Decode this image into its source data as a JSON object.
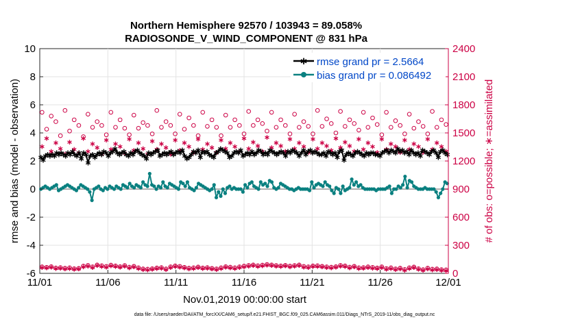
{
  "chart_data": {
    "type": "line",
    "title_line1": "Northern Hemisphere 92570 / 103943 = 89.058%",
    "title_line2": "RADIOSONDE_V_WIND_COMPONENT @ 831 hPa",
    "xlabel": "Nov.01,2019 00:00:00 start",
    "ylabel_left": "rmse and bias (model - observation)",
    "ylabel_right": "# of obs: o=possible; ∗=assimilated",
    "footnote": "data file: /Users/raeder/DAI/ATM_forcXX/CAM6_setup/f.e21.FHIST_BGC.f09_025.CAM6assim.011/Diags_NTrS_2019-11/obs_diag_output.nc",
    "xlim": [
      0,
      30
    ],
    "ylim_left": [
      -6,
      10
    ],
    "ylim_right": [
      0,
      2400
    ],
    "x_ticks": [
      0,
      5,
      10,
      15,
      20,
      25,
      30
    ],
    "x_tick_labels": [
      "11/01",
      "11/06",
      "11/11",
      "11/16",
      "11/21",
      "11/26",
      "12/01"
    ],
    "y_left_ticks": [
      -6,
      -4,
      -2,
      0,
      2,
      4,
      6,
      8,
      10
    ],
    "y_left_tick_labels": [
      "-6",
      "-4",
      "-2",
      "0",
      "2",
      "4",
      "6",
      "8",
      "10"
    ],
    "y_right_ticks": [
      0,
      300,
      600,
      900,
      1200,
      1500,
      1800,
      2100,
      2400
    ],
    "y_right_tick_labels": [
      "0",
      "300",
      "600",
      "900",
      "1200",
      "1500",
      "1800",
      "2100",
      "2400"
    ],
    "legend": [
      {
        "label": "rmse grand pr = 2.5664",
        "color": "#000000"
      },
      {
        "label": "bias grand pr = 0.086492",
        "color": "#0a8080"
      }
    ],
    "colors": {
      "rmse": "#000000",
      "bias": "#0a8080",
      "obs": "#cc0044",
      "zero_line": "#b0b0b0",
      "label_text": "#0047c8"
    },
    "series": [
      {
        "name": "rmse",
        "values": [
          2.3,
          2.1,
          2.4,
          2.5,
          2.4,
          2.5,
          2.4,
          2.6,
          2.5,
          2.6,
          2.5,
          2.4,
          2.6,
          2.5,
          2.7,
          2.5,
          2.4,
          2.6,
          2.2,
          2.6,
          2.5,
          1.9,
          2.4,
          2.5,
          2.3,
          2.5,
          2.6,
          2.5,
          2.7,
          2.6,
          2.4,
          2.6,
          2.7,
          2.9,
          2.6,
          2.5,
          2.6,
          2.7,
          2.5,
          2.4,
          2.6,
          2.5,
          2.7,
          2.8,
          2.6,
          2.5,
          2.4,
          2.2,
          2.6,
          2.5,
          2.6,
          2.7,
          2.8,
          2.4,
          2.5,
          2.6,
          2.5,
          2.6,
          2.7,
          2.5,
          2.6,
          2.7,
          2.6,
          2.8,
          2.4,
          2.2,
          2.3,
          2.5,
          2.7,
          2.6,
          2.8,
          2.3,
          2.7,
          2.6,
          2.7,
          2.5,
          2.4,
          2.3,
          2.6,
          2.7,
          2.9,
          2.8,
          2.7,
          2.6,
          2.3,
          2.4,
          2.6,
          2.7,
          2.6,
          2.8,
          2.4,
          2.5,
          2.6,
          2.5,
          2.7,
          2.5,
          2.6,
          2.8,
          2.7,
          2.5,
          2.6,
          2.5,
          2.8,
          2.7,
          2.6,
          2.5,
          2.6,
          2.7,
          2.6,
          2.4,
          2.7,
          2.6,
          2.8,
          2.7,
          2.6,
          2.4,
          2.6,
          2.8,
          2.5,
          2.7,
          2.8,
          2.6,
          2.7,
          2.6,
          2.5,
          2.5,
          2.6,
          2.4,
          2.7,
          2.6,
          2.5,
          2.6,
          2.3,
          2.7,
          2.8,
          2.1,
          2.5,
          2.6,
          2.5,
          2.4,
          2.6,
          2.7,
          2.6,
          2.5,
          2.4,
          2.6,
          2.5,
          2.6,
          2.6,
          2.5,
          2.5,
          2.4,
          2.6,
          2.7,
          2.8,
          2.6,
          2.8,
          2.7,
          2.6,
          2.9,
          2.7,
          2.8,
          2.6,
          2.7,
          2.5,
          2.8,
          2.6,
          2.5,
          2.6,
          2.4,
          2.8,
          2.7,
          2.6,
          2.5,
          2.7,
          2.8,
          2.6,
          2.3,
          2.7,
          2.8,
          2.6,
          2.5
        ]
      },
      {
        "name": "bias",
        "values": [
          0.0,
          0.1,
          0.2,
          0.1,
          0.0,
          0.1,
          0.2,
          0.3,
          -0.1,
          0.0,
          0.1,
          0.2,
          0.3,
          0.2,
          0.1,
          0.0,
          -0.1,
          0.1,
          0.3,
          0.2,
          0.1,
          0.0,
          -0.2,
          -0.8,
          0.0,
          0.1,
          0.2,
          0.0,
          -0.1,
          0.1,
          0.0,
          0.2,
          0.1,
          0.0,
          0.2,
          0.1,
          0.0,
          0.3,
          0.2,
          0.1,
          0.4,
          0.2,
          0.1,
          0.3,
          0.2,
          0.1,
          0.5,
          0.3,
          0.2,
          1.1,
          0.3,
          0.2,
          0.0,
          0.2,
          0.1,
          0.5,
          0.2,
          0.1,
          0.4,
          0.3,
          0.2,
          0.1,
          0.0,
          0.5,
          0.4,
          0.2,
          0.5,
          0.1,
          0.0,
          -0.1,
          0.1,
          0.4,
          0.3,
          0.2,
          0.1,
          0.0,
          -0.1,
          0.0,
          0.3,
          -0.6,
          -0.2,
          -0.5,
          0.0,
          -0.3,
          0.1,
          0.2,
          0.0,
          0.1,
          0.0,
          0.0,
          0.0,
          -0.2,
          0.3,
          0.1,
          0.4,
          0.5,
          0.2,
          0.1,
          0.0,
          0.5,
          0.3,
          0.4,
          0.2,
          0.6,
          0.5,
          0.1,
          0.0,
          0.1,
          0.4,
          0.3,
          0.2,
          0.1,
          0.0,
          0.0,
          -0.1,
          0.0,
          0.1,
          0.0,
          0.0,
          0.0,
          0.0,
          -0.1,
          0.5,
          0.1,
          0.3,
          0.4,
          0.3,
          0.2,
          0.5,
          0.3,
          0.2,
          -0.1,
          -0.3,
          0.1,
          0.0,
          -0.3,
          0.2,
          -0.1,
          0.0,
          0.1,
          0.7,
          0.3,
          0.5,
          0.2,
          0.3,
          0.1,
          0.0,
          0.0,
          0.0,
          0.0,
          0.0,
          -0.1,
          0.0,
          0.0,
          0.0,
          0.0,
          0.1,
          0.2,
          -0.3,
          0.0,
          0.0,
          0.2,
          0.1,
          0.3,
          0.9,
          0.1,
          0.6,
          0.5,
          0.2,
          0.1,
          0.0,
          0.0,
          0.0,
          0.1,
          0.0,
          0.0,
          0.0,
          0.0,
          -0.2,
          -0.6,
          -0.3,
          0.0,
          0.5,
          0.4
        ]
      },
      {
        "name": "obs_possible",
        "values": [
          1720,
          1540,
          1680,
          1620,
          1470,
          1740,
          1520,
          1640,
          1580,
          1460,
          1700,
          1560,
          1620,
          1580,
          1480,
          1720,
          1560,
          1640,
          1550,
          1480,
          1690,
          1550,
          1610,
          1580,
          1490,
          1740,
          1560,
          1620,
          1580,
          1490,
          1700,
          1540,
          1660,
          1580,
          1470,
          1720,
          1570,
          1640,
          1560,
          1470,
          1690,
          1560,
          1640,
          1580,
          1490,
          1730,
          1580,
          1640,
          1600,
          1520,
          1720,
          1560,
          1640,
          1580,
          1490,
          1700,
          1560,
          1620,
          1570,
          1490,
          1740,
          1570,
          1650,
          1600,
          1500,
          1730,
          1570,
          1640,
          1600,
          1530,
          1720,
          1560,
          1660,
          1590,
          1480,
          1720,
          1560,
          1630,
          1580,
          1490,
          1700,
          1550,
          1620,
          1570,
          1490,
          1730,
          1560,
          1640,
          1590
        ]
      },
      {
        "name": "obs_assimilated",
        "values": [
          1360,
          1450,
          1310,
          1400,
          1340,
          1280,
          1410,
          1330,
          1290,
          1450,
          1310,
          1390,
          1350,
          1280,
          1430,
          1330,
          1390,
          1360,
          1290,
          1440,
          1320,
          1400,
          1340,
          1280,
          1420,
          1330,
          1390,
          1350,
          1280,
          1430,
          1320,
          1400,
          1360,
          1300,
          1440,
          1330,
          1390,
          1350,
          1300,
          1430,
          1340,
          1400,
          1360,
          1310,
          1450,
          1340,
          1410,
          1370,
          1310,
          1460,
          1350,
          1400,
          1370,
          1310,
          1440,
          1340,
          1400,
          1360,
          1300,
          1440,
          1340,
          1400,
          1370,
          1320,
          1450,
          1350,
          1410,
          1370,
          1310,
          1440,
          1330,
          1400,
          1360,
          1300,
          1440,
          1330,
          1390,
          1360,
          1300,
          1430,
          1330,
          1390,
          1360,
          1300,
          1440,
          1330,
          1400,
          1360,
          1310
        ]
      },
      {
        "name": "obs_bottom_possible",
        "values": [
          70,
          65,
          72,
          58,
          62,
          55,
          60,
          50,
          54,
          78,
          85,
          70,
          90,
          82,
          75,
          88,
          80,
          72,
          84,
          66,
          76,
          60,
          48,
          45,
          50,
          58,
          62,
          48,
          70,
          80,
          75,
          65,
          56,
          60,
          68,
          58,
          62,
          54,
          48,
          60,
          72,
          66,
          60,
          70,
          78,
          85,
          90,
          82,
          88,
          95,
          90,
          84,
          80,
          86,
          78,
          84,
          90,
          75,
          70,
          80,
          82,
          76,
          70,
          66,
          72,
          85,
          80,
          66,
          76,
          60,
          62,
          70,
          64,
          58,
          70,
          52,
          60,
          48,
          56,
          42,
          60,
          68,
          50,
          40,
          56,
          45,
          48,
          40,
          38
        ]
      },
      {
        "name": "obs_bottom_assimilated",
        "values": [
          70,
          65,
          72,
          58,
          62,
          55,
          60,
          50,
          54,
          78,
          85,
          70,
          90,
          82,
          75,
          88,
          80,
          72,
          84,
          66,
          76,
          60,
          48,
          45,
          50,
          58,
          62,
          48,
          70,
          80,
          75,
          65,
          56,
          60,
          68,
          58,
          62,
          54,
          48,
          60,
          72,
          66,
          60,
          70,
          78,
          85,
          90,
          82,
          88,
          95,
          90,
          84,
          80,
          86,
          78,
          84,
          90,
          75,
          70,
          80,
          82,
          76,
          70,
          66,
          72,
          85,
          80,
          66,
          76,
          60,
          62,
          70,
          64,
          58,
          70,
          52,
          60,
          48,
          56,
          42,
          60,
          68,
          50,
          40,
          56,
          45,
          48,
          40,
          38
        ]
      }
    ]
  }
}
